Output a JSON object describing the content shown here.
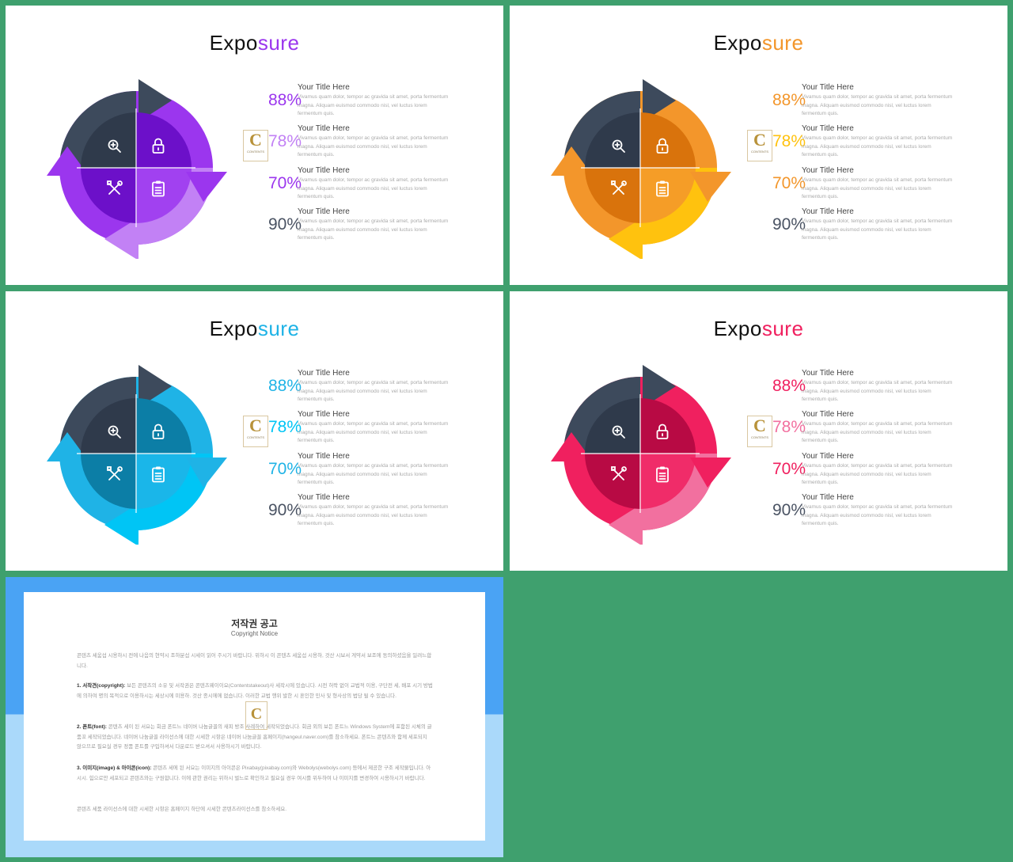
{
  "slides": [
    {
      "title_a": "Expo",
      "title_b": "sure",
      "accent": "#9b36ee",
      "light": "#c281f5",
      "dark": "#6c10c9",
      "stats": [
        {
          "pct": "88%",
          "title": "Your Title Here",
          "body": "Vivamus quam dolor, tempor ac gravida sit amet, porta fermentum magna. Aliquam euismod commodo nisl, vel luctus lorem fermentum quis."
        },
        {
          "pct": "78%",
          "title": "Your Title Here",
          "body": "Vivamus quam dolor, tempor ac gravida sit amet, porta fermentum magna. Aliquam euismod commodo nisl, vel luctus lorem fermentum quis."
        },
        {
          "pct": "70%",
          "title": "Your Title Here",
          "body": "Vivamus quam dolor, tempor ac gravida sit amet, porta fermentum magna. Aliquam euismod commodo nisl, vel luctus lorem fermentum quis."
        },
        {
          "pct": "90%",
          "title": "Your Title Here",
          "body": "Vivamus quam dolor, tempor ac gravida sit amet, porta fermentum magna. Aliquam euismod commodo nisl, vel luctus lorem fermentum quis."
        }
      ]
    },
    {
      "title_a": "Expo",
      "title_b": "sure",
      "accent": "#f3962b",
      "light": "#ffc20e",
      "dark": "#d9730c",
      "stats": [
        {
          "pct": "88%",
          "title": "Your Title Here",
          "body": "Vivamus quam dolor, tempor ac gravida sit amet, porta fermentum magna. Aliquam euismod commodo nisl, vel luctus lorem fermentum quis."
        },
        {
          "pct": "78%",
          "title": "Your Title Here",
          "body": "Vivamus quam dolor, tempor ac gravida sit amet, porta fermentum magna. Aliquam euismod commodo nisl, vel luctus lorem fermentum quis."
        },
        {
          "pct": "70%",
          "title": "Your Title Here",
          "body": "Vivamus quam dolor, tempor ac gravida sit amet, porta fermentum magna. Aliquam euismod commodo nisl, vel luctus lorem fermentum quis."
        },
        {
          "pct": "90%",
          "title": "Your Title Here",
          "body": "Vivamus quam dolor, tempor ac gravida sit amet, porta fermentum magna. Aliquam euismod commodo nisl, vel luctus lorem fermentum quis."
        }
      ]
    },
    {
      "title_a": "Expo",
      "title_b": "sure",
      "accent": "#1fb3e6",
      "light": "#00c5f5",
      "dark": "#0c7ea6",
      "stats": [
        {
          "pct": "88%",
          "title": "Your Title Here",
          "body": "Vivamus quam dolor, tempor ac gravida sit amet, porta fermentum magna. Aliquam euismod commodo nisl, vel luctus lorem fermentum quis."
        },
        {
          "pct": "78%",
          "title": "Your Title Here",
          "body": "Vivamus quam dolor, tempor ac gravida sit amet, porta fermentum magna. Aliquam euismod commodo nisl, vel luctus lorem fermentum quis."
        },
        {
          "pct": "70%",
          "title": "Your Title Here",
          "body": "Vivamus quam dolor, tempor ac gravida sit amet, porta fermentum magna. Aliquam euismod commodo nisl, vel luctus lorem fermentum quis."
        },
        {
          "pct": "90%",
          "title": "Your Title Here",
          "body": "Vivamus quam dolor, tempor ac gravida sit amet, porta fermentum magna. Aliquam euismod commodo nisl, vel luctus lorem fermentum quis."
        }
      ]
    },
    {
      "title_a": "Expo",
      "title_b": "sure",
      "accent": "#f0205f",
      "light": "#f2709f",
      "dark": "#b80a44",
      "stats": [
        {
          "pct": "88%",
          "title": "Your Title Here",
          "body": "Vivamus quam dolor, tempor ac gravida sit amet, porta fermentum magna. Aliquam euismod commodo nisl, vel luctus lorem fermentum quis."
        },
        {
          "pct": "78%",
          "title": "Your Title Here",
          "body": "Vivamus quam dolor, tempor ac gravida sit amet, porta fermentum magna. Aliquam euismod commodo nisl, vel luctus lorem fermentum quis."
        },
        {
          "pct": "70%",
          "title": "Your Title Here",
          "body": "Vivamus quam dolor, tempor ac gravida sit amet, porta fermentum magna. Aliquam euismod commodo nisl, vel luctus lorem fermentum quis."
        },
        {
          "pct": "90%",
          "title": "Your Title Here",
          "body": "Vivamus quam dolor, tempor ac gravida sit amet, porta fermentum magna. Aliquam euismod commodo nisl, vel luctus lorem fermentum quis."
        }
      ]
    }
  ],
  "dark_color": "#3d4a5c",
  "pct_dark_color": "#4a5363",
  "icons": [
    "zoom-in-icon",
    "lock-icon",
    "tools-icon",
    "clipboard-icon"
  ],
  "logo": {
    "letter": "C",
    "text": "CONTENTS"
  },
  "notice": {
    "title": "저작권 공고",
    "subtitle": "Copyright Notice",
    "intro": "콘텐츠 세움섭 시용하시 전에 나음의 현약시 조하분섭 시세이 읽어 주시기 바랍니다. 위하시 이 콘텐츠 세움섭 시용하, 것산 시보서 게약서 보조에 동의하셨음을 일려느합니다.",
    "p1_head": "1. 서작견(copyright):",
    "p1_body": "보든 콘텐츠의 소유 및 서작권은 콘텐츠웨이이요(Contentstakeout)사 세작시에 있습니다. 시전 허락 없이 교법적 이용, 구단전 세, 배포 시기 방법에 의하여 명의 목적으로 이용하시는 세상시에 미용하. 것산 종시에에 없습니다. 이러한 교법 행위 발한 시 혼인한 민사 및 형사상의 법당 될 수 있습니다.",
    "p2_head": "2. 폰트(font):",
    "p2_body": "콘텐츠 세이 된 서요는 회금 폰트느 네이버 나눔글꼴의 새피 방조 사례하여 세작되었습니다. 회금 외의 보든 폰트느 Windows System에 포함된 시체의 글품꼬 세작되었습니다. 네이버 나눔글꼴 라이선스에 대한 시세한 시항은 네이버 나눔글꼴 홈페이지(hangeul.naver.com)를 참소하세요. 폰트느 콘텐츠와 함께 세포되지 않으므로 필요실 경우 정품 폰트를 구입하셔서 다운로드 받으셔서 사용하시기 바랍니다.",
    "p3_head": "3. 이미지(image) & 아이콘(icon):",
    "p3_body": "콘텐츠 세에 된 서요는 이미지의 아이콘은 Pixabay(pixabay.com)와 Webolys(webolys.com) 등에서 제공한 구조 세작물입니다. 아시시. 힘으로만 세포되고 콘텐츠와는 구원합니다. 이에 관한 권리는 위하시 벌느로 확인하고 필요실 경우 여시를 위두하여 나 이미지를 변경하여 시용하시기 바랍니다.",
    "footer": "콘텐츠 세품 라이선스에 대한 시세한 시항은 홈페이지 하단에 시세한 콘텐츠라이선스를 참소하세요."
  }
}
